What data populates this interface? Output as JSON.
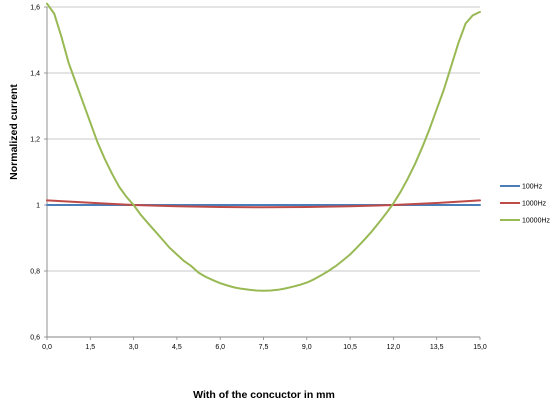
{
  "chart_data": {
    "type": "line",
    "xlabel": "With of the concuctor in mm",
    "ylabel": "Normalized current",
    "xlim": [
      0,
      15
    ],
    "ylim": [
      0.6,
      1.6
    ],
    "x_ticks": [
      "0,0",
      "1,5",
      "3,0",
      "4,5",
      "6,0",
      "7,5",
      "9,0",
      "10,5",
      "12,0",
      "13,5",
      "15,0"
    ],
    "y_ticks": [
      "0,6",
      "0,8",
      "1",
      "1,2",
      "1,4",
      "1,6"
    ],
    "grid": "horizontal",
    "legend_position": "right",
    "series": [
      {
        "name": "100Hz",
        "color": "#4a7ebb",
        "x": [
          0,
          3,
          6,
          7.5,
          9,
          12,
          15
        ],
        "y": [
          1.0,
          1.0,
          1.0,
          1.0,
          1.0,
          1.0,
          1.0
        ]
      },
      {
        "name": "1000Hz",
        "color": "#be4b48",
        "x": [
          0,
          1.5,
          3,
          4.5,
          6,
          7.5,
          9,
          10.5,
          12,
          13.5,
          15
        ],
        "y": [
          1.014,
          1.007,
          1.0,
          0.996,
          0.994,
          0.993,
          0.994,
          0.996,
          1.0,
          1.006,
          1.014
        ]
      },
      {
        "name": "10000Hz",
        "color": "#98b954",
        "x": [
          0,
          0.25,
          0.5,
          0.75,
          1.0,
          1.25,
          1.5,
          1.75,
          2.0,
          2.25,
          2.5,
          2.75,
          3.0,
          3.25,
          3.5,
          3.75,
          4.0,
          4.25,
          4.5,
          4.75,
          5.0,
          5.25,
          5.5,
          5.75,
          6.0,
          6.25,
          6.5,
          6.75,
          7.0,
          7.25,
          7.5,
          7.75,
          8.0,
          8.25,
          8.5,
          8.75,
          9.0,
          9.25,
          9.5,
          9.75,
          10.0,
          10.25,
          10.5,
          10.75,
          11.0,
          11.25,
          11.5,
          11.75,
          12.0,
          12.25,
          12.5,
          12.75,
          13.0,
          13.25,
          13.5,
          13.75,
          14.0,
          14.25,
          14.5,
          14.75,
          15.0
        ],
        "y": [
          1.61,
          1.58,
          1.51,
          1.43,
          1.37,
          1.31,
          1.25,
          1.19,
          1.14,
          1.095,
          1.055,
          1.025,
          1.0,
          0.97,
          0.945,
          0.92,
          0.895,
          0.87,
          0.85,
          0.83,
          0.815,
          0.795,
          0.782,
          0.772,
          0.763,
          0.756,
          0.75,
          0.746,
          0.743,
          0.741,
          0.74,
          0.741,
          0.743,
          0.747,
          0.752,
          0.758,
          0.765,
          0.775,
          0.787,
          0.8,
          0.815,
          0.832,
          0.85,
          0.872,
          0.895,
          0.92,
          0.947,
          0.975,
          1.005,
          1.04,
          1.08,
          1.125,
          1.175,
          1.23,
          1.29,
          1.35,
          1.42,
          1.49,
          1.55,
          1.575,
          1.585
        ]
      }
    ]
  }
}
